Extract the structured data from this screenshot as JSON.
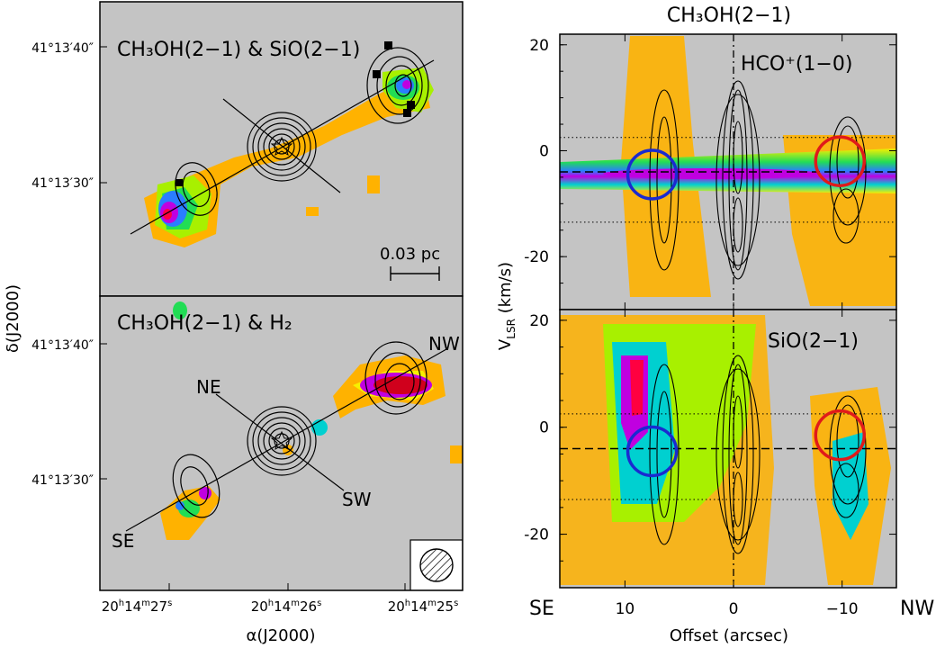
{
  "colors": {
    "background_gray": "#c4c4c4",
    "colormap": [
      "#ffd77a",
      "#ffb200",
      "#f7f000",
      "#a8f000",
      "#22dd55",
      "#00d0d0",
      "#2a7dff",
      "#c000e0",
      "#ff0040"
    ],
    "blob_red": "#d0001c",
    "circle_red": "#e01a1a",
    "circle_blue": "#1a2ad0",
    "contour": "#000000"
  },
  "left": {
    "top_title": "CH₃OH(2−1) & SiO(2−1)",
    "bottom_title": "CH₃OH(2−1) & H₂",
    "dec_axis_label": "δ(J2000)",
    "ra_axis_label": "α(J2000)",
    "dec_ticks_top": [
      "41°13′40″",
      "41°13′30″"
    ],
    "dec_ticks_bottom": [
      "41°13′40″",
      "41°13′30″"
    ],
    "ra_ticks": [
      "20h14m27s",
      "20h14m26s",
      "20h14m25s"
    ],
    "ra_tick_parts": [
      {
        "h": "20",
        "m": "14",
        "s": "27"
      },
      {
        "h": "20",
        "m": "14",
        "s": "26"
      },
      {
        "h": "20",
        "m": "14",
        "s": "25"
      }
    ],
    "scalebar_label": "0.03 pc",
    "direction_labels": {
      "ne": "NE",
      "sw": "SW",
      "nw": "NW",
      "se": "SE"
    }
  },
  "right": {
    "main_title": "CH₃OH(2−1)",
    "top_label": "HCO⁺(1−0)",
    "bottom_label": "SiO(2−1)",
    "ylabel": "V_LSR (km/s)",
    "xlabel": "Offset (arcsec)",
    "x_end_left": "SE",
    "x_end_right": "NW"
  },
  "chart_data": [
    {
      "type": "heatmap",
      "title": "CH₃OH(2−1) & SiO(2−1)",
      "panel": "position-position map (top left)",
      "xlabel": "α(J2000)",
      "ylabel": "δ(J2000)",
      "x_ticks": [
        "20h14m27s",
        "20h14m26s",
        "20h14m25s"
      ],
      "y_ticks": [
        "41°13′40″",
        "41°13′30″"
      ],
      "annotations": [
        "0.03 pc"
      ]
    },
    {
      "type": "heatmap",
      "title": "CH₃OH(2−1) & H₂",
      "panel": "position-position map (bottom left)",
      "xlabel": "α(J2000)",
      "ylabel": "δ(J2000)",
      "x_ticks": [
        "20h14m27s",
        "20h14m26s",
        "20h14m25s"
      ],
      "y_ticks": [
        "41°13′40″",
        "41°13′30″"
      ],
      "annotations": [
        "NE",
        "SW",
        "NW",
        "SE"
      ]
    },
    {
      "type": "heatmap",
      "title": "CH₃OH(2−1)",
      "label": "HCO⁺(1−0)",
      "panel": "position-velocity diagram (top right)",
      "xlabel": "Offset (arcsec)",
      "ylabel": "V_LSR (km/s)",
      "xlim": [
        16,
        -15
      ],
      "ylim": [
        -30,
        22
      ],
      "x_ticks": [
        10,
        0,
        -10
      ],
      "y_ticks": [
        20,
        0,
        -20
      ],
      "v_systemic": -4,
      "dotted_lines_v": [
        2.5,
        -13.5
      ],
      "contour_columns_offset": [
        7.5,
        0,
        -10
      ],
      "circles": [
        {
          "color": "blue",
          "offset": 7.5,
          "v": -4.5
        },
        {
          "color": "red",
          "offset": -9.8,
          "v": -2
        }
      ]
    },
    {
      "type": "heatmap",
      "label": "SiO(2−1)",
      "panel": "position-velocity diagram (bottom right)",
      "xlabel": "Offset (arcsec)",
      "ylabel": "V_LSR (km/s)",
      "xlim": [
        16,
        -15
      ],
      "ylim": [
        -30,
        22
      ],
      "x_ticks": [
        10,
        0,
        -10
      ],
      "y_ticks": [
        20,
        0,
        -20
      ],
      "v_systemic": -4,
      "dotted_lines_v": [
        2.5,
        -13.5
      ],
      "contour_columns_offset": [
        7.5,
        0,
        -10
      ],
      "circles": [
        {
          "color": "blue",
          "offset": 7.5,
          "v": -4.5
        },
        {
          "color": "red",
          "offset": -9.8,
          "v": -1.5
        }
      ]
    }
  ]
}
